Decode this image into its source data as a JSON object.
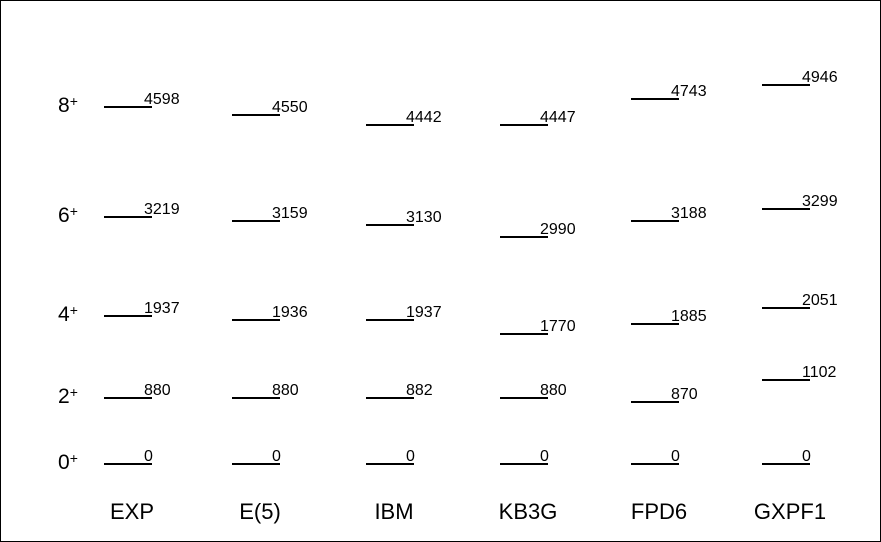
{
  "diagram": {
    "spin_labels": [
      {
        "base": "8",
        "sup": "+"
      },
      {
        "base": "6",
        "sup": "+"
      },
      {
        "base": "4",
        "sup": "+"
      },
      {
        "base": "2",
        "sup": "+"
      },
      {
        "base": "0",
        "sup": "+"
      }
    ],
    "columns": [
      {
        "name": "EXP",
        "energies": [
          "4598",
          "3219",
          "1937",
          "880",
          "0"
        ]
      },
      {
        "name": "E(5)",
        "energies": [
          "4550",
          "3159",
          "1936",
          "880",
          "0"
        ]
      },
      {
        "name": "IBM",
        "energies": [
          "4442",
          "3130",
          "1937",
          "882",
          "0"
        ]
      },
      {
        "name": "KB3G",
        "energies": [
          "4447",
          "2990",
          "1770",
          "880",
          "0"
        ]
      },
      {
        "name": "FPD6",
        "energies": [
          "4743",
          "3188",
          "1885",
          "870",
          "0"
        ]
      },
      {
        "name": "GXPF1",
        "energies": [
          "4946",
          "3299",
          "2051",
          "1102",
          "0"
        ]
      }
    ]
  },
  "colors": {
    "border": "#000000",
    "text": "#000000",
    "background": "#ffffff"
  }
}
